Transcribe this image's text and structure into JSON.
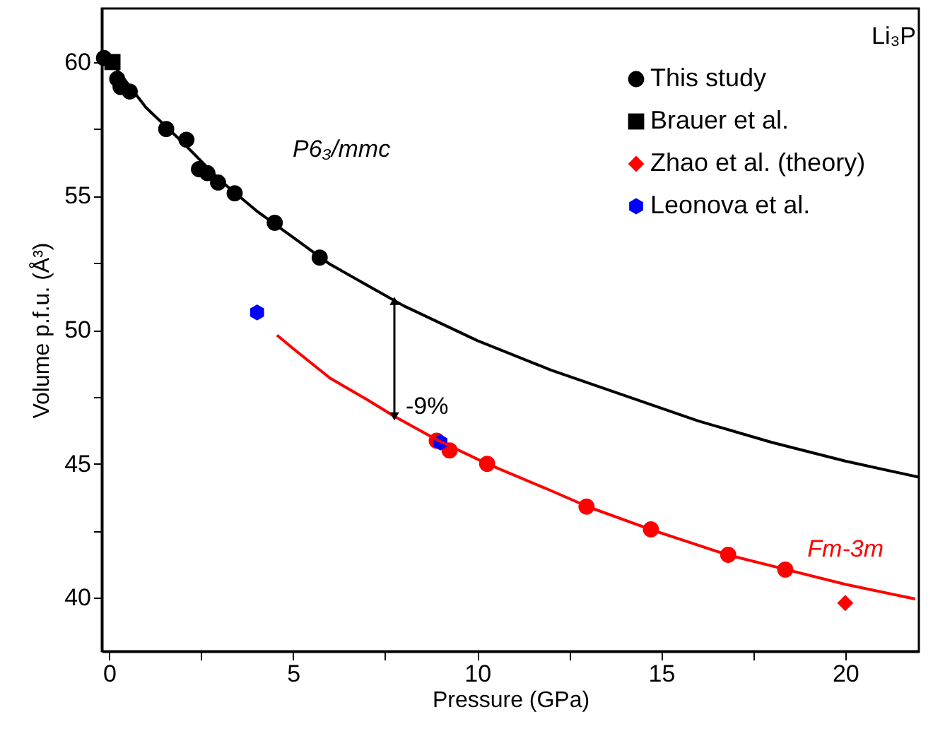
{
  "chart_data": {
    "type": "scatter",
    "xlabel": "Pressure (GPa)",
    "ylabel": "Volume p.f.u. (Å³)",
    "xlim": [
      -0.2,
      22
    ],
    "ylim": [
      38,
      62
    ],
    "xticks": [
      0,
      {
        "value": 2.5,
        "label": null
      },
      5,
      {
        "value": 7.5,
        "label": null
      },
      10,
      {
        "value": 12.5,
        "label": null
      },
      15,
      {
        "value": 17.5,
        "label": null
      },
      20
    ],
    "yticks": [
      40,
      {
        "value": 42.5,
        "label": null
      },
      45,
      {
        "value": 47.5,
        "label": null
      },
      50,
      {
        "value": 52.5,
        "label": null
      },
      55,
      {
        "value": 57.5,
        "label": null
      },
      60
    ],
    "grid": false,
    "legend": "top right",
    "series": [
      {
        "name": "This study",
        "marker": "circle",
        "color": "#000000",
        "x": [
          -0.14,
          0.22,
          0.31,
          0.56,
          1.55,
          2.1,
          2.44,
          2.67,
          2.96,
          3.41,
          4.5,
          5.72
        ],
        "values": [
          60.15,
          59.37,
          59.07,
          58.9,
          57.5,
          57.1,
          56.0,
          55.85,
          55.5,
          55.1,
          54.0,
          52.7
        ]
      },
      {
        "marker": "circle",
        "color": "#ff0000",
        "x": [
          8.9,
          9.25,
          10.27,
          12.97,
          14.72,
          16.82,
          18.37
        ],
        "values": [
          45.86,
          45.5,
          45.0,
          43.4,
          42.55,
          41.6,
          41.05
        ]
      },
      {
        "name": "Brauer et al.",
        "marker": "square",
        "color": "#000000",
        "x": [
          0.09
        ],
        "values": [
          60.0
        ]
      },
      {
        "name": "Zhao et al. (theory)",
        "marker": "diamond",
        "color": "#ff0000",
        "x": [
          20.0
        ],
        "values": [
          39.8
        ]
      },
      {
        "name": "Leonova et al.",
        "color": "#0000ff",
        "x": [
          4.02,
          9.0
        ],
        "values": [
          50.65,
          45.8
        ]
      },
      {
        "type": "line",
        "line_style": "solid",
        "color": "#000000",
        "x": [
          0,
          1,
          2,
          3,
          4,
          5,
          6,
          8,
          10,
          12,
          14,
          16,
          18,
          20,
          22
        ],
        "values": [
          60.1,
          58.3,
          57.0,
          55.6,
          54.45,
          53.45,
          52.45,
          50.9,
          49.6,
          48.5,
          47.55,
          46.6,
          45.8,
          45.1,
          44.5
        ]
      },
      {
        "type": "line",
        "line_style": "solid",
        "color": "#ff0000",
        "x": [
          4.56,
          5,
          6,
          7,
          7.75,
          8.9,
          10.27,
          12,
          13,
          14.7,
          16.8,
          18.4,
          20,
          21.9
        ],
        "values": [
          49.8,
          49.3,
          48.2,
          47.4,
          46.77,
          45.9,
          45.0,
          44.0,
          43.4,
          42.55,
          41.6,
          41.05,
          40.5,
          39.95
        ]
      },
      {
        "type": "line",
        "marker": "triangle",
        "color": "#000000",
        "x": [
          7.75,
          7.75
        ],
        "values": [
          51.08,
          46.77
        ]
      }
    ],
    "annotations": [
      "Li₃P",
      "P6₃/mmc",
      "-9%",
      "Fm-3m"
    ]
  }
}
